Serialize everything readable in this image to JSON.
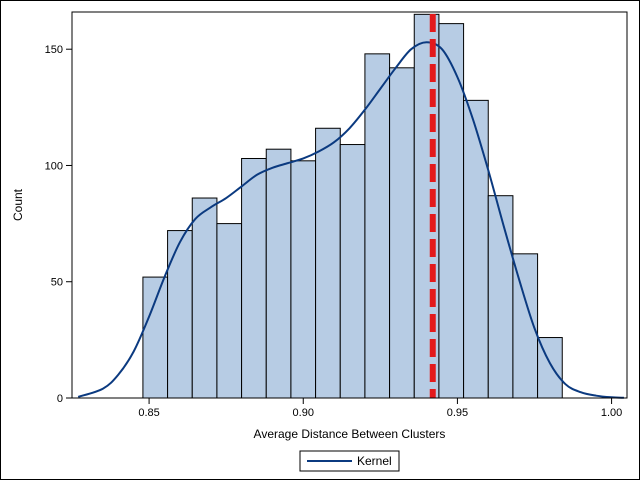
{
  "chart_data": {
    "type": "bar",
    "xlabel": "Average Distance Between Clusters",
    "ylabel": "Count",
    "xlim": [
      0.825,
      1.005
    ],
    "ylim": [
      0,
      166
    ],
    "x_ticks": [
      0.85,
      0.9,
      0.95,
      1.0
    ],
    "x_tick_labels": [
      "0.85",
      "0.90",
      "0.95",
      "1.00"
    ],
    "y_ticks": [
      0,
      50,
      100,
      150
    ],
    "y_tick_labels": [
      "0",
      "50",
      "100",
      "150"
    ],
    "grid": false,
    "bin_width": 0.008,
    "bins": [
      {
        "start": 0.848,
        "end": 0.856,
        "count": 52
      },
      {
        "start": 0.856,
        "end": 0.864,
        "count": 72
      },
      {
        "start": 0.864,
        "end": 0.872,
        "count": 86
      },
      {
        "start": 0.872,
        "end": 0.88,
        "count": 75
      },
      {
        "start": 0.88,
        "end": 0.888,
        "count": 103
      },
      {
        "start": 0.888,
        "end": 0.896,
        "count": 107
      },
      {
        "start": 0.896,
        "end": 0.904,
        "count": 102
      },
      {
        "start": 0.904,
        "end": 0.912,
        "count": 116
      },
      {
        "start": 0.912,
        "end": 0.92,
        "count": 109
      },
      {
        "start": 0.92,
        "end": 0.928,
        "count": 148
      },
      {
        "start": 0.928,
        "end": 0.936,
        "count": 142
      },
      {
        "start": 0.936,
        "end": 0.944,
        "count": 165
      },
      {
        "start": 0.944,
        "end": 0.952,
        "count": 161
      },
      {
        "start": 0.952,
        "end": 0.96,
        "count": 128
      },
      {
        "start": 0.96,
        "end": 0.968,
        "count": 87
      },
      {
        "start": 0.968,
        "end": 0.976,
        "count": 62
      },
      {
        "start": 0.976,
        "end": 0.984,
        "count": 26
      }
    ],
    "kernel": {
      "name": "Kernel",
      "x": [
        0.827,
        0.835,
        0.84,
        0.845,
        0.85,
        0.855,
        0.86,
        0.865,
        0.87,
        0.875,
        0.88,
        0.885,
        0.89,
        0.895,
        0.9,
        0.905,
        0.91,
        0.915,
        0.92,
        0.925,
        0.93,
        0.935,
        0.94,
        0.945,
        0.95,
        0.955,
        0.96,
        0.965,
        0.97,
        0.975,
        0.98,
        0.985,
        0.99,
        0.995,
        1.0,
        1.004
      ],
      "y": [
        0.5,
        4,
        10,
        20,
        35,
        52,
        67,
        77,
        82,
        86,
        91,
        96,
        99,
        101,
        103,
        106,
        110,
        116,
        124,
        133,
        142,
        150,
        153,
        150,
        138,
        120,
        98,
        74,
        51,
        30,
        15,
        6,
        2.5,
        1,
        0.3,
        0.1
      ]
    },
    "reference_line": {
      "x": 0.942,
      "color": "#e31a1c",
      "style": "dashed"
    },
    "colors": {
      "bar_fill": "#b7cce4",
      "bar_stroke": "#000000",
      "kernel_line": "#0b3a80",
      "reference_line": "#e31a1c"
    },
    "legend": {
      "position": "bottom-center",
      "entries": [
        {
          "label": "Kernel",
          "color": "#0b3a80"
        }
      ]
    }
  }
}
